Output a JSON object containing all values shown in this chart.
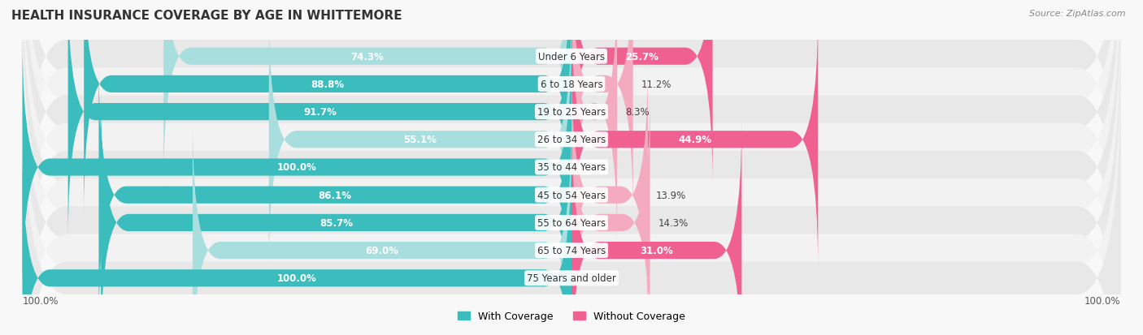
{
  "title": "HEALTH INSURANCE COVERAGE BY AGE IN WHITTEMORE",
  "source": "Source: ZipAtlas.com",
  "categories": [
    "Under 6 Years",
    "6 to 18 Years",
    "19 to 25 Years",
    "26 to 34 Years",
    "35 to 44 Years",
    "45 to 54 Years",
    "55 to 64 Years",
    "65 to 74 Years",
    "75 Years and older"
  ],
  "with_coverage": [
    74.3,
    88.8,
    91.7,
    55.1,
    100.0,
    86.1,
    85.7,
    69.0,
    100.0
  ],
  "without_coverage": [
    25.7,
    11.2,
    8.3,
    44.9,
    0.0,
    13.9,
    14.3,
    31.0,
    0.0
  ],
  "color_with_dark": "#3BBDBD",
  "color_with_light": "#A8DEDE",
  "color_without_dark": "#F06090",
  "color_without_light": "#F4AABF",
  "bg_row": "#EBEBEB",
  "bg_fig": "#F8F8F8",
  "bar_height": 0.62,
  "legend_with": "With Coverage",
  "legend_without": "Without Coverage",
  "xlim_left": -100,
  "xlim_right": 100,
  "with_dark_threshold": 80,
  "without_dark_threshold": 20
}
